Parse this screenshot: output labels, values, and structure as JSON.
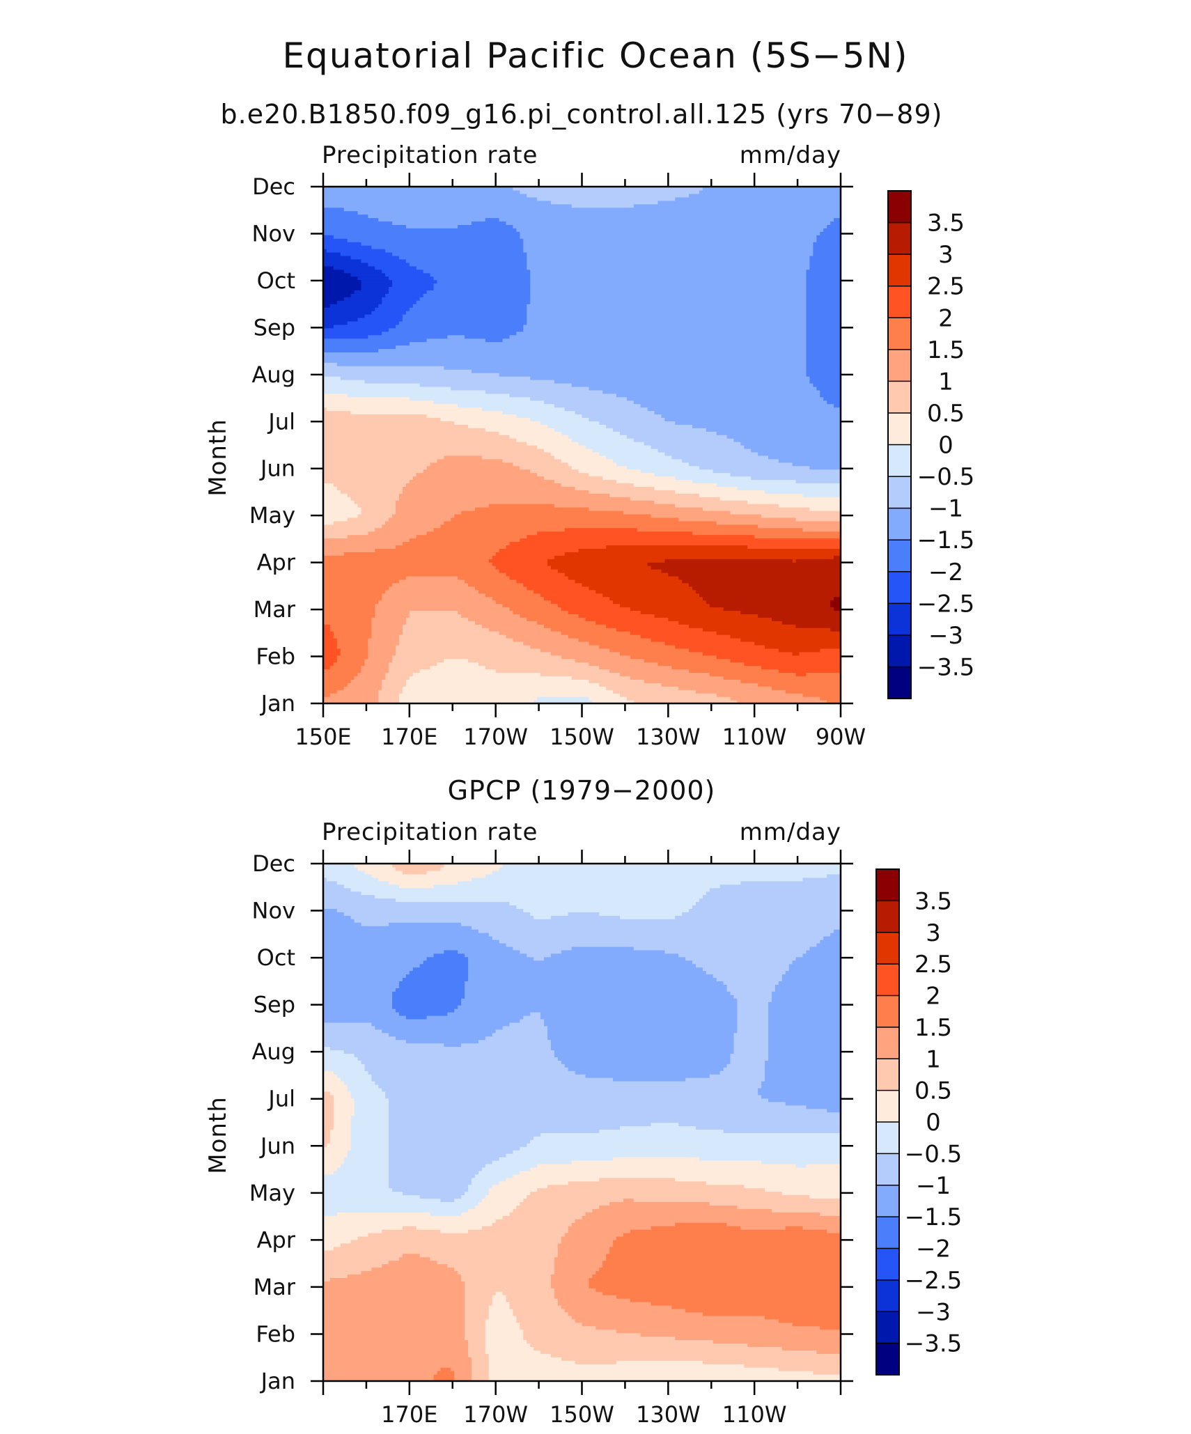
{
  "title": "Equatorial Pacific Ocean (5S−5N)",
  "colorbar": {
    "labels": [
      "3.5",
      "3",
      "2.5",
      "2",
      "1.5",
      "1",
      "0.5",
      "0",
      "−0.5",
      "−1",
      "−1.5",
      "−2",
      "−2.5",
      "−3",
      "−3.5"
    ],
    "colors": [
      "#8b0000",
      "#b81c00",
      "#e23600",
      "#ff5323",
      "#ff7f4c",
      "#ffa47e",
      "#ffc9b0",
      "#ffebdc",
      "#d6e8fb",
      "#b4ccfb",
      "#82aafd",
      "#4a7efb",
      "#2655f7",
      "#0b33d8",
      "#0018ab",
      "#000080"
    ]
  },
  "chart_data": [
    {
      "type": "heatmap",
      "subtitle": "b.e20.B1850.f09_g16.pi_control.all.125 (yrs 70−89)",
      "left_label": "Precipitation rate",
      "right_label": "mm/day",
      "ylabel": "Month",
      "x_ticks": [
        "150E",
        "170E",
        "170W",
        "150W",
        "130W",
        "110W",
        "90W"
      ],
      "y_ticks": [
        "Jan",
        "Feb",
        "Mar",
        "Apr",
        "May",
        "Jun",
        "Jul",
        "Aug",
        "Sep",
        "Oct",
        "Nov",
        "Dec"
      ],
      "levels": [
        -3.5,
        -3,
        -2.5,
        -2,
        -1.5,
        -1,
        -0.5,
        0,
        0.5,
        1,
        1.5,
        2,
        2.5,
        3,
        3.5
      ],
      "x_lon_east": [
        150,
        160,
        170,
        180,
        190,
        200,
        210,
        220,
        230,
        240,
        250,
        260,
        270
      ],
      "z_months_jan_to_dec": [
        [
          1.4,
          1.2,
          0.2,
          0.2,
          0.3,
          -0.1,
          -0.2,
          0.4,
          0.6,
          0.8,
          1.0,
          1.3,
          1.5
        ],
        [
          2.3,
          1.5,
          0.7,
          0.5,
          0.6,
          0.9,
          1.2,
          1.5,
          1.8,
          2.0,
          2.3,
          2.5,
          2.3
        ],
        [
          1.9,
          1.6,
          1.0,
          1.0,
          1.4,
          1.8,
          2.2,
          2.5,
          2.7,
          3.0,
          3.1,
          3.3,
          3.6
        ],
        [
          1.7,
          1.8,
          1.7,
          1.7,
          2.1,
          2.5,
          2.8,
          3.0,
          3.1,
          3.2,
          3.2,
          3.1,
          3.3
        ],
        [
          0.2,
          0.5,
          1.3,
          1.5,
          1.6,
          1.7,
          1.7,
          1.6,
          1.4,
          1.2,
          1.0,
          0.8,
          0.6
        ],
        [
          0.6,
          0.8,
          0.9,
          1.2,
          1.2,
          0.9,
          0.4,
          0.0,
          -0.3,
          -0.6,
          -0.9,
          -1.0,
          -1.1
        ],
        [
          0.9,
          0.7,
          0.8,
          0.5,
          0.3,
          0.0,
          -0.4,
          -0.7,
          -1.0,
          -1.1,
          -1.2,
          -1.2,
          -1.4
        ],
        [
          -0.5,
          -0.7,
          -0.8,
          -0.9,
          -1.0,
          -1.1,
          -1.2,
          -1.3,
          -1.4,
          -1.4,
          -1.4,
          -1.4,
          -1.8
        ],
        [
          -2.5,
          -2.3,
          -1.8,
          -1.6,
          -1.7,
          -1.4,
          -1.4,
          -1.4,
          -1.4,
          -1.4,
          -1.4,
          -1.4,
          -1.9
        ],
        [
          -3.6,
          -3.0,
          -2.2,
          -1.9,
          -1.9,
          -1.4,
          -1.4,
          -1.4,
          -1.4,
          -1.4,
          -1.4,
          -1.4,
          -1.9
        ],
        [
          -2.0,
          -1.7,
          -1.6,
          -1.6,
          -1.8,
          -1.3,
          -1.3,
          -1.3,
          -1.3,
          -1.3,
          -1.3,
          -1.3,
          -1.7
        ],
        [
          -1.2,
          -1.2,
          -1.0,
          -1.0,
          -1.0,
          -0.9,
          -0.8,
          -0.8,
          -0.9,
          -1.0,
          -1.0,
          -1.0,
          -1.2
        ]
      ]
    },
    {
      "type": "heatmap",
      "subtitle": "GPCP (1979−2000)",
      "left_label": "Precipitation rate",
      "right_label": "mm/day",
      "ylabel": "Month",
      "x_ticks": [
        "170E",
        "170W",
        "150W",
        "130W",
        "110W"
      ],
      "y_ticks": [
        "Jan",
        "Feb",
        "Mar",
        "Apr",
        "May",
        "Jun",
        "Jul",
        "Aug",
        "Sep",
        "Oct",
        "Nov",
        "Dec"
      ],
      "levels": [
        -3.5,
        -3,
        -2.5,
        -2,
        -1.5,
        -1,
        -0.5,
        0,
        0.5,
        1,
        1.5,
        2,
        2.5,
        3,
        3.5
      ],
      "x_lon_east": [
        150,
        160,
        170,
        180,
        190,
        200,
        210,
        220,
        230,
        240,
        250,
        260,
        270
      ],
      "z_months_jan_to_dec": [
        [
          1.0,
          1.1,
          1.4,
          1.6,
          0.3,
          0.2,
          0.3,
          0.2,
          0.1,
          0.1,
          0.2,
          0.3,
          0.4
        ],
        [
          1.3,
          1.3,
          1.5,
          1.3,
          0.2,
          0.7,
          0.9,
          1.0,
          1.1,
          1.2,
          1.3,
          1.4,
          1.5
        ],
        [
          1.1,
          1.2,
          1.3,
          1.2,
          0.5,
          0.8,
          1.5,
          1.7,
          1.8,
          2.0,
          1.8,
          2.0,
          1.8
        ],
        [
          0.3,
          0.6,
          0.9,
          0.7,
          0.7,
          0.8,
          1.2,
          1.6,
          1.8,
          2.0,
          1.7,
          1.9,
          1.7
        ],
        [
          -0.3,
          -0.4,
          -0.6,
          -0.8,
          0.2,
          0.6,
          0.8,
          0.9,
          0.8,
          0.7,
          0.6,
          0.4,
          0.3
        ],
        [
          0.6,
          -0.4,
          -0.6,
          -1.0,
          -0.8,
          -0.4,
          -0.4,
          -0.3,
          -0.2,
          -0.3,
          -0.3,
          -0.3,
          -0.2
        ],
        [
          0.8,
          -0.4,
          -0.6,
          -0.8,
          -0.7,
          -0.8,
          -0.8,
          -0.8,
          -0.8,
          -0.9,
          -1.0,
          -1.1,
          -1.3
        ],
        [
          -0.4,
          -0.6,
          -0.8,
          -0.9,
          -0.9,
          -0.9,
          -1.2,
          -1.3,
          -1.3,
          -1.1,
          -0.9,
          -1.2,
          -1.3
        ],
        [
          -1.3,
          -1.2,
          -1.8,
          -1.6,
          -1.1,
          -1.0,
          -1.3,
          -1.4,
          -1.3,
          -1.2,
          -0.9,
          -1.2,
          -1.3
        ],
        [
          -1.2,
          -1.2,
          -1.4,
          -1.7,
          -1.2,
          -1.0,
          -1.2,
          -1.2,
          -1.1,
          -0.9,
          -0.8,
          -1.0,
          -1.2
        ],
        [
          -1.1,
          -0.9,
          -0.9,
          -0.8,
          -0.7,
          -0.4,
          -0.5,
          -0.4,
          -0.4,
          -0.6,
          -0.7,
          -0.7,
          -0.9
        ],
        [
          -0.3,
          0.2,
          0.9,
          0.5,
          0.1,
          -0.3,
          -0.3,
          -0.2,
          -0.3,
          -0.4,
          -0.4,
          -0.4,
          -0.4
        ]
      ]
    }
  ]
}
